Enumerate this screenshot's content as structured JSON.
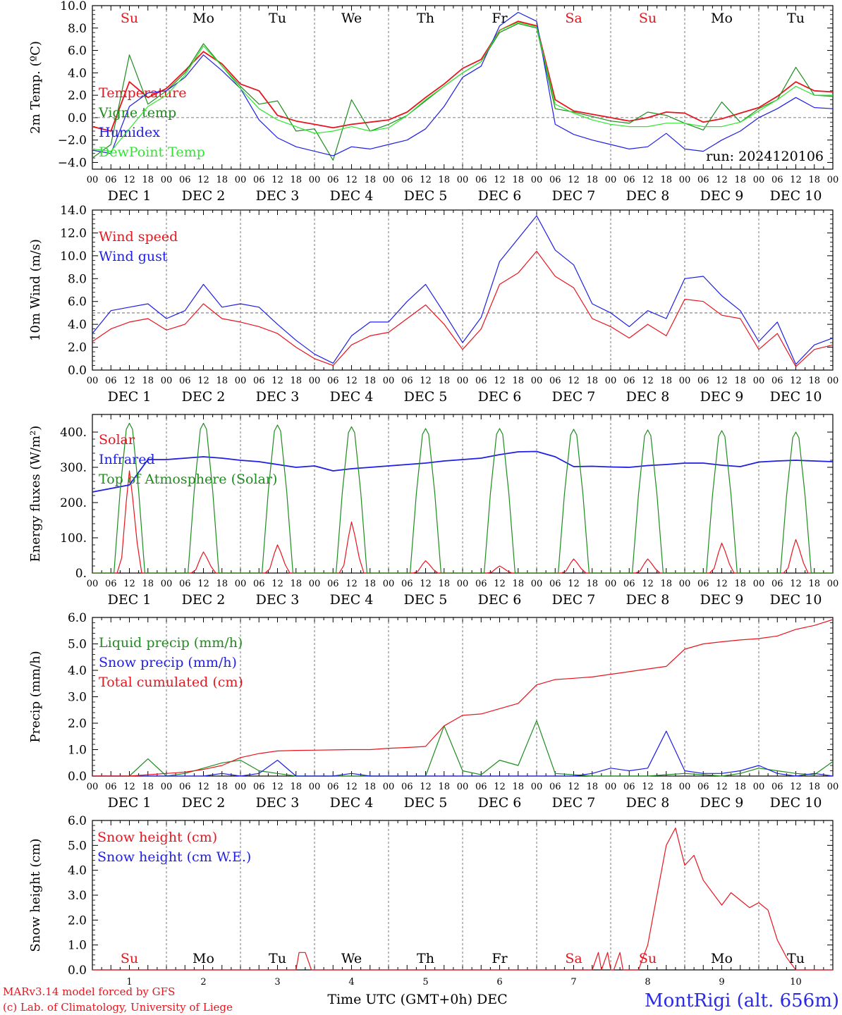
{
  "run_label": "run: 2024120106",
  "footer": {
    "credit_line1": "MARv3.14 model forced by GFS",
    "credit_line2": "(c) Lab. of Climatology, University of Liege",
    "xlabel": "Time UTC (GMT+0h) DEC",
    "station": "MontRigi (alt. 656m)"
  },
  "colors": {
    "red": "#e8141e",
    "green": "#1e8c1e",
    "blue": "#1e1ee6",
    "lime": "#2ee62e",
    "grid": "#808080"
  },
  "days": [
    "Su",
    "Mo",
    "Tu",
    "We",
    "Th",
    "Fr",
    "Sa",
    "Su",
    "Mo",
    "Tu"
  ],
  "weekend_days": [
    0,
    6,
    7
  ],
  "date_labels": [
    "DEC 1",
    "DEC 2",
    "DEC 3",
    "DEC 4",
    "DEC 5",
    "DEC 6",
    "DEC 7",
    "DEC 8",
    "DEC 9",
    "DEC 10"
  ],
  "day_numbers": [
    "1",
    "2",
    "3",
    "4",
    "5",
    "6",
    "7",
    "8",
    "9",
    "10"
  ],
  "hour_ticks": [
    "00",
    "06",
    "12",
    "18"
  ],
  "chart_data": [
    {
      "type": "line",
      "ylabel": "2m Temp. (ºC)",
      "ylim": [
        -4.6,
        10
      ],
      "yticks": [
        "10.0",
        "8.0",
        "6.0",
        "4.0",
        "2.0",
        "0.0",
        "−2.0",
        "−4.0"
      ],
      "ytick_values": [
        10,
        8,
        6,
        4,
        2,
        0,
        -2,
        -4
      ],
      "reference_line": 0,
      "legend_placement": "left",
      "x_hours": [
        0,
        6,
        12,
        18,
        24,
        30,
        36,
        42,
        48,
        54,
        60,
        66,
        72,
        78,
        84,
        90,
        96,
        102,
        108,
        114,
        120,
        126,
        132,
        138,
        144,
        150,
        156,
        162,
        168,
        174,
        180,
        186,
        192,
        198,
        204,
        210,
        216,
        222,
        228,
        234,
        240
      ],
      "series": [
        {
          "name": "Temperature",
          "color": "#e8141e",
          "values": [
            -0.8,
            -1.2,
            3.2,
            1.8,
            2.6,
            4.2,
            5.9,
            4.8,
            3.0,
            2.4,
            0.2,
            -0.3,
            -0.6,
            -0.9,
            -0.6,
            -0.4,
            -0.2,
            0.5,
            1.8,
            3.0,
            4.4,
            5.2,
            7.8,
            8.6,
            8.2,
            1.6,
            0.6,
            0.3,
            0.0,
            -0.3,
            0.0,
            0.5,
            0.4,
            -0.4,
            -0.1,
            0.4,
            0.9,
            1.9,
            3.2,
            2.4,
            2.3
          ]
        },
        {
          "name": "Vigne temp",
          "color": "#1e8c1e",
          "values": [
            -3.6,
            -2.4,
            5.6,
            1.2,
            2.4,
            4.0,
            6.6,
            4.6,
            2.8,
            1.2,
            1.5,
            -1.2,
            -1.0,
            -3.8,
            1.6,
            -1.2,
            -0.6,
            0.2,
            1.5,
            2.8,
            4.0,
            5.0,
            7.6,
            8.4,
            8.0,
            0.8,
            0.5,
            0.1,
            -0.3,
            -0.5,
            0.5,
            0.2,
            -0.5,
            -1.1,
            1.4,
            -0.4,
            0.8,
            1.6,
            4.5,
            2.0,
            1.9
          ]
        },
        {
          "name": "Humidex",
          "color": "#1e1ee6",
          "values": [
            -2.9,
            -3.2,
            1.0,
            2.2,
            2.4,
            3.6,
            5.6,
            4.2,
            2.6,
            -0.2,
            -1.8,
            -2.6,
            -3.0,
            -3.4,
            -2.6,
            -2.8,
            -2.4,
            -2.0,
            -1.0,
            1.0,
            3.6,
            4.6,
            8.2,
            9.4,
            8.6,
            -0.6,
            -1.5,
            -2.0,
            -2.4,
            -2.8,
            -2.6,
            -1.4,
            -2.8,
            -3.0,
            -2.0,
            -1.2,
            0.0,
            0.8,
            1.8,
            0.9,
            0.8
          ]
        },
        {
          "name": "DewPoint Temp",
          "color": "#2ee62e",
          "values": [
            -2.8,
            -3.0,
            -1.0,
            1.0,
            2.0,
            3.8,
            6.4,
            4.6,
            2.6,
            0.8,
            -0.2,
            -0.8,
            -1.4,
            -1.2,
            -0.8,
            -1.2,
            -0.9,
            0.2,
            1.6,
            2.8,
            4.0,
            5.0,
            7.8,
            8.5,
            8.1,
            1.2,
            0.4,
            -0.2,
            -0.6,
            -0.8,
            -0.8,
            -0.5,
            -0.5,
            -0.8,
            -0.8,
            -0.4,
            0.6,
            1.6,
            2.8,
            2.0,
            2.0
          ]
        }
      ]
    },
    {
      "type": "line",
      "ylabel": "10m Wind (m/s)",
      "ylim": [
        0,
        14
      ],
      "yticks": [
        "14.0",
        "12.0",
        "10.0",
        "8.0",
        "6.0",
        "4.0",
        "2.0",
        "0.0"
      ],
      "ytick_values": [
        14,
        12,
        10,
        8,
        6,
        4,
        2,
        0
      ],
      "reference_line": 5,
      "legend_placement": "left",
      "x_hours": [
        0,
        6,
        12,
        18,
        24,
        30,
        36,
        42,
        48,
        54,
        60,
        66,
        72,
        78,
        84,
        90,
        96,
        102,
        108,
        114,
        120,
        126,
        132,
        138,
        144,
        150,
        156,
        162,
        168,
        174,
        180,
        186,
        192,
        198,
        204,
        210,
        216,
        222,
        228,
        234,
        240
      ],
      "series": [
        {
          "name": "Wind speed",
          "color": "#e8141e",
          "values": [
            2.5,
            3.6,
            4.2,
            4.5,
            3.5,
            4.0,
            5.8,
            4.5,
            4.2,
            3.8,
            3.2,
            2.0,
            1.0,
            0.4,
            2.2,
            3.0,
            3.3,
            4.5,
            5.7,
            4.0,
            1.8,
            3.6,
            7.5,
            8.5,
            10.4,
            8.2,
            7.2,
            4.5,
            3.8,
            2.8,
            4.0,
            3.0,
            6.2,
            6.0,
            4.8,
            4.5,
            1.8,
            3.2,
            0.3,
            1.8,
            2.2
          ]
        },
        {
          "name": "Wind gust",
          "color": "#1e1ee6",
          "values": [
            3.2,
            5.2,
            5.5,
            5.8,
            4.5,
            5.2,
            7.5,
            5.5,
            5.8,
            5.5,
            4.0,
            2.6,
            1.4,
            0.6,
            3.0,
            4.2,
            4.2,
            6.0,
            7.5,
            5.0,
            2.4,
            4.6,
            9.5,
            11.5,
            13.5,
            10.5,
            9.2,
            5.8,
            5.0,
            3.8,
            5.2,
            4.5,
            8.0,
            8.2,
            6.5,
            5.2,
            2.5,
            4.2,
            0.5,
            2.2,
            2.8
          ]
        }
      ]
    },
    {
      "type": "line",
      "ylabel": "Energy fluxes (W/m²)",
      "ylim": [
        0,
        450
      ],
      "yticks": [
        "400.",
        "300.",
        "200.",
        "100.",
        "0."
      ],
      "ytick_values": [
        400,
        300,
        200,
        100,
        0
      ],
      "legend_placement": "left",
      "daily_cycle": {
        "peak_hour_of_day": 12,
        "toa_peak": [
          425,
          425,
          420,
          415,
          410,
          410,
          408,
          406,
          404,
          400
        ],
        "solar_peak": [
          290,
          60,
          80,
          145,
          35,
          20,
          40,
          40,
          85,
          95
        ]
      },
      "series": [
        {
          "name": "Solar",
          "color": "#e8141e"
        },
        {
          "name": "Infrared",
          "color": "#1e1ee6",
          "x_hours": [
            0,
            6,
            12,
            18,
            24,
            30,
            36,
            42,
            48,
            54,
            60,
            66,
            72,
            78,
            84,
            90,
            96,
            102,
            108,
            114,
            120,
            126,
            132,
            138,
            144,
            150,
            156,
            162,
            168,
            174,
            180,
            186,
            192,
            198,
            204,
            210,
            216,
            222,
            228,
            234,
            240
          ],
          "values": [
            230,
            240,
            250,
            322,
            322,
            326,
            330,
            326,
            320,
            316,
            308,
            300,
            304,
            290,
            296,
            300,
            304,
            308,
            312,
            318,
            322,
            326,
            336,
            344,
            345,
            330,
            302,
            303,
            301,
            300,
            305,
            308,
            312,
            312,
            306,
            302,
            315,
            318,
            320,
            318,
            316
          ]
        },
        {
          "name": "Top of Atmosphere (Solar)",
          "color": "#1e8c1e"
        }
      ]
    },
    {
      "type": "line",
      "ylabel": "Precip (mm/h)",
      "ylim": [
        0,
        6
      ],
      "yticks": [
        "6.0",
        "5.0",
        "4.0",
        "3.0",
        "2.0",
        "1.0",
        "0.0"
      ],
      "ytick_values": [
        6,
        5,
        4,
        3,
        2,
        1,
        0
      ],
      "legend_placement": "left",
      "x_hours": [
        0,
        6,
        12,
        18,
        24,
        30,
        36,
        42,
        48,
        54,
        60,
        66,
        72,
        78,
        84,
        90,
        96,
        102,
        108,
        114,
        120,
        126,
        132,
        138,
        144,
        150,
        156,
        162,
        168,
        174,
        180,
        186,
        192,
        198,
        204,
        210,
        216,
        222,
        228,
        234,
        240
      ],
      "series": [
        {
          "name": "Liquid precip (mm/h)",
          "color": "#1e8c1e",
          "values": [
            0,
            0,
            0,
            0.65,
            0,
            0.1,
            0.3,
            0.5,
            0.6,
            0.2,
            0.1,
            0,
            0,
            0,
            0,
            0,
            0,
            0,
            0,
            1.9,
            0.2,
            0.05,
            0.6,
            0.4,
            2.1,
            0.1,
            0.05,
            0,
            0,
            0,
            0,
            0.05,
            0.1,
            0.05,
            0,
            0.1,
            0.3,
            0.2,
            0.1,
            0.05,
            0.55
          ]
        },
        {
          "name": "Snow precip (mm/h)",
          "color": "#1e1ee6",
          "values": [
            0,
            0,
            0,
            0,
            0,
            0,
            0,
            0.1,
            0,
            0.1,
            0.6,
            0,
            0,
            0,
            0.1,
            0,
            0,
            0,
            0,
            0,
            0,
            0,
            0,
            0,
            0,
            0,
            0,
            0.1,
            0.3,
            0.2,
            0.3,
            1.7,
            0.2,
            0.1,
            0.1,
            0.2,
            0.4,
            0.1,
            0,
            0.1,
            0
          ]
        },
        {
          "name": "Total cumulated (cm)",
          "color": "#e8141e",
          "values": [
            0,
            0,
            0,
            0.05,
            0.1,
            0.15,
            0.25,
            0.4,
            0.7,
            0.85,
            0.95,
            0.97,
            0.98,
            0.99,
            1.0,
            1.0,
            1.05,
            1.08,
            1.12,
            1.9,
            2.3,
            2.35,
            2.55,
            2.75,
            3.45,
            3.65,
            3.7,
            3.75,
            3.85,
            3.95,
            4.05,
            4.15,
            4.8,
            5.0,
            5.08,
            5.15,
            5.2,
            5.3,
            5.55,
            5.7,
            5.92
          ]
        }
      ]
    },
    {
      "type": "line",
      "ylabel": "Snow height (cm)",
      "ylim": [
        0,
        6
      ],
      "yticks": [
        "6.0",
        "5.0",
        "4.0",
        "3.0",
        "2.0",
        "1.0",
        "0.0"
      ],
      "ytick_values": [
        6,
        5,
        4,
        3,
        2,
        1,
        0
      ],
      "legend_placement": "left",
      "x_hours": [
        0,
        12,
        24,
        36,
        48,
        60,
        66,
        67,
        69,
        71,
        72,
        84,
        96,
        108,
        120,
        132,
        144,
        156,
        162,
        164,
        165,
        167,
        168,
        169,
        171,
        172,
        174,
        175,
        177,
        180,
        183,
        186,
        189,
        192,
        195,
        198,
        201,
        204,
        207,
        210,
        213,
        216,
        219,
        222,
        225,
        228,
        234,
        240
      ],
      "series": [
        {
          "name": "Snow height (cm)",
          "color": "#e8141e",
          "values": [
            0,
            0,
            0,
            0,
            0,
            0,
            0,
            0.7,
            0.7,
            0,
            0,
            0,
            0,
            0,
            0,
            0,
            0,
            0,
            0,
            0.7,
            0,
            0.7,
            0,
            0,
            0.7,
            0,
            0,
            0,
            0,
            1.0,
            3.0,
            5.0,
            5.7,
            4.2,
            4.6,
            3.6,
            3.1,
            2.6,
            3.1,
            2.8,
            2.5,
            2.7,
            2.4,
            1.2,
            0.5,
            0,
            0,
            0
          ]
        },
        {
          "name": "Snow height (cm W.E.)",
          "color": "#1e1ee6",
          "values": []
        }
      ]
    }
  ]
}
